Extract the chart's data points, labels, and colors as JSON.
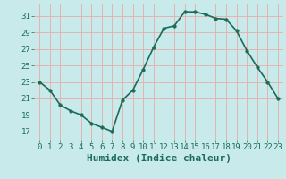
{
  "x": [
    0,
    1,
    2,
    3,
    4,
    5,
    6,
    7,
    8,
    9,
    10,
    11,
    12,
    13,
    14,
    15,
    16,
    17,
    18,
    19,
    20,
    21,
    22,
    23
  ],
  "y": [
    23,
    22,
    20.2,
    19.5,
    19,
    18,
    17.5,
    17,
    20.8,
    22,
    24.5,
    27.2,
    29.5,
    29.8,
    31.5,
    31.5,
    31.2,
    30.7,
    30.6,
    29.2,
    26.8,
    24.8,
    23,
    21
  ],
  "line_color": "#1a6b5a",
  "marker_color": "#1a6b5a",
  "bg_color": "#c8eaea",
  "grid_color": "#e8aaaa",
  "xlabel": "Humidex (Indice chaleur)",
  "xlabel_fontsize": 8,
  "tick_color": "#1a6b5a",
  "ylim": [
    16,
    32.5
  ],
  "xlim": [
    -0.5,
    23.5
  ],
  "yticks": [
    17,
    19,
    21,
    23,
    25,
    27,
    29,
    31
  ],
  "xticks": [
    0,
    1,
    2,
    3,
    4,
    5,
    6,
    7,
    8,
    9,
    10,
    11,
    12,
    13,
    14,
    15,
    16,
    17,
    18,
    19,
    20,
    21,
    22,
    23
  ],
  "tick_labelsize": 6.5,
  "linewidth": 1.2,
  "markersize": 2.5
}
